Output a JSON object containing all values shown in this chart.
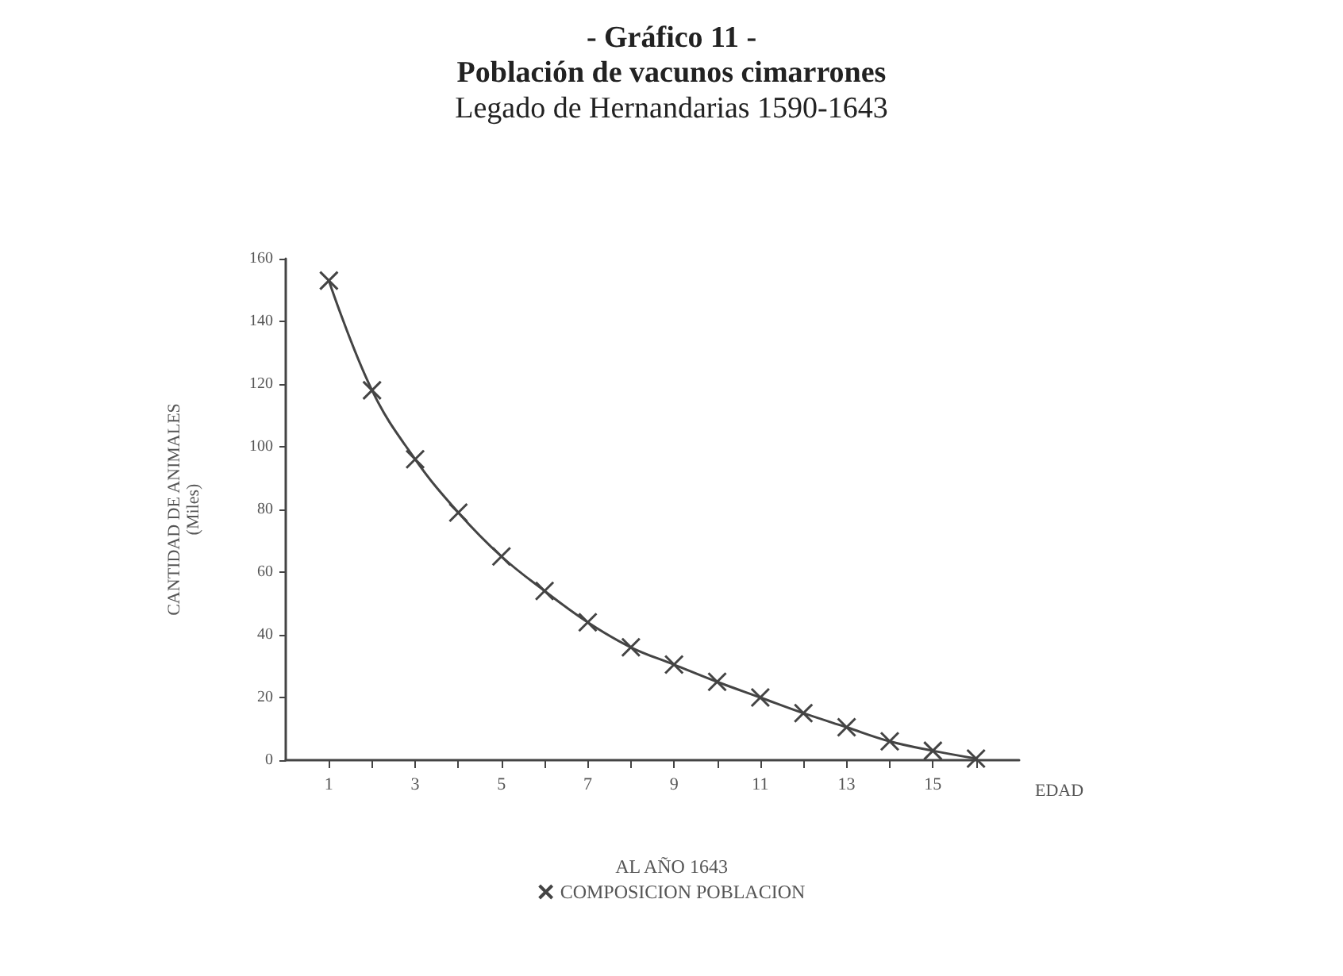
{
  "chart_data": {
    "type": "line",
    "title": "- Gráfico 11 -\nPoblación de vacunos cimarrones",
    "subtitle": "Legado de Hernandarias 1590-1643",
    "xlabel": "EDAD",
    "ylabel": "CANTIDAD DE ANIMALES\n(Miles)",
    "legend_title": "AL AÑO 1643",
    "x": [
      1,
      2,
      3,
      4,
      5,
      6,
      7,
      8,
      9,
      10,
      11,
      12,
      13,
      14,
      15,
      16
    ],
    "series": [
      {
        "name": "COMPOSICION POBLACION",
        "color": "#444444",
        "values": [
          153,
          118,
          96,
          79,
          65,
          54,
          44,
          36,
          30.5,
          25,
          20,
          15,
          10.5,
          6,
          3,
          0.5
        ]
      }
    ],
    "xlim": [
      0,
      17
    ],
    "xticks": [
      1,
      {
        "value": 2,
        "label": null
      },
      3,
      {
        "value": 4,
        "label": null
      },
      5,
      {
        "value": 6,
        "label": null
      },
      7,
      {
        "value": 8,
        "label": null
      },
      9,
      {
        "value": 10,
        "label": null
      },
      11,
      {
        "value": 12,
        "label": null
      },
      13,
      {
        "value": 14,
        "label": null
      },
      15,
      {
        "value": 16,
        "label": null
      }
    ],
    "ylim": [
      0,
      160
    ],
    "yticks": [
      0,
      20,
      40,
      60,
      80,
      100,
      120,
      140,
      160
    ],
    "grid": false,
    "legend": "bottom",
    "marker": "cross",
    "line_style": "solid"
  }
}
